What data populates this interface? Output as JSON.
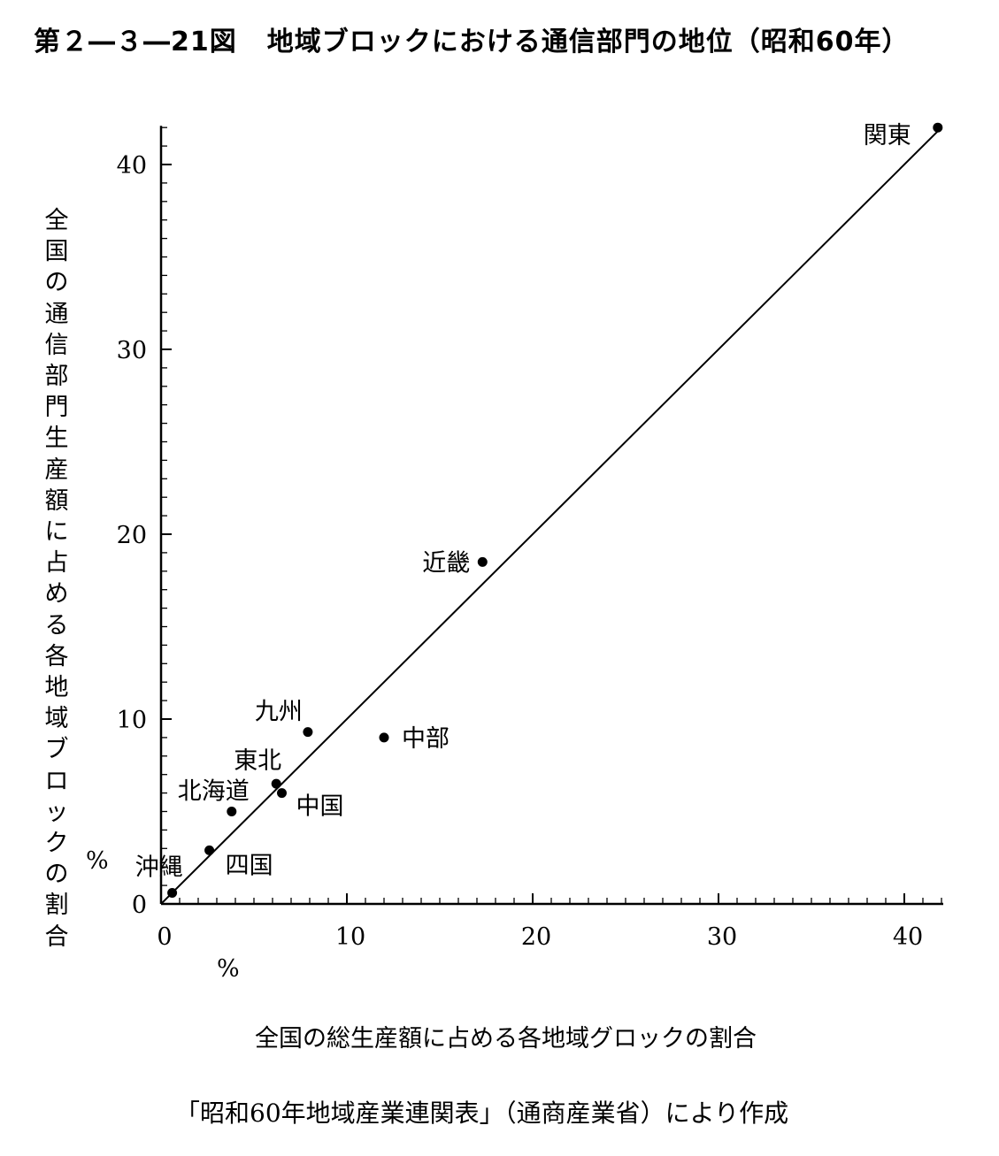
{
  "chart_data": {
    "type": "scatter",
    "title": "第２―３―21図　地域ブロックにおける通信部門の地位（昭和60年）",
    "title_parts": [
      "第２―３―21図",
      "地域ブロックにおける通信部門の地位（昭和60年）"
    ],
    "xlabel": "全国の総生産額に占める各地域グロックの割合",
    "ylabel": "全国の通信部門生産額に占める各地域ブロックの割合",
    "x_unit": "%",
    "y_unit": "%",
    "source": "「昭和60年地域産業連関表」（通商産業省）により作成",
    "xlim": [
      0,
      42
    ],
    "ylim": [
      0,
      42
    ],
    "x_ticks": [
      "0",
      "10",
      "20",
      "30",
      "40"
    ],
    "y_ticks": [
      "0",
      "10",
      "20",
      "30",
      "40"
    ],
    "grid": false,
    "reference_line": [
      [
        0,
        0
      ],
      [
        42,
        42
      ]
    ],
    "points": [
      {
        "label": "関東",
        "x": 41.8,
        "y": 42.0
      },
      {
        "label": "近畿",
        "x": 17.3,
        "y": 18.5
      },
      {
        "label": "中部",
        "x": 12.0,
        "y": 9.0
      },
      {
        "label": "九州",
        "x": 7.9,
        "y": 9.3
      },
      {
        "label": "東北",
        "x": 6.2,
        "y": 6.5
      },
      {
        "label": "中国",
        "x": 6.5,
        "y": 6.0
      },
      {
        "label": "北海道",
        "x": 3.8,
        "y": 5.0
      },
      {
        "label": "四国",
        "x": 2.6,
        "y": 2.9
      },
      {
        "label": "沖縄",
        "x": 0.6,
        "y": 0.6
      }
    ]
  }
}
